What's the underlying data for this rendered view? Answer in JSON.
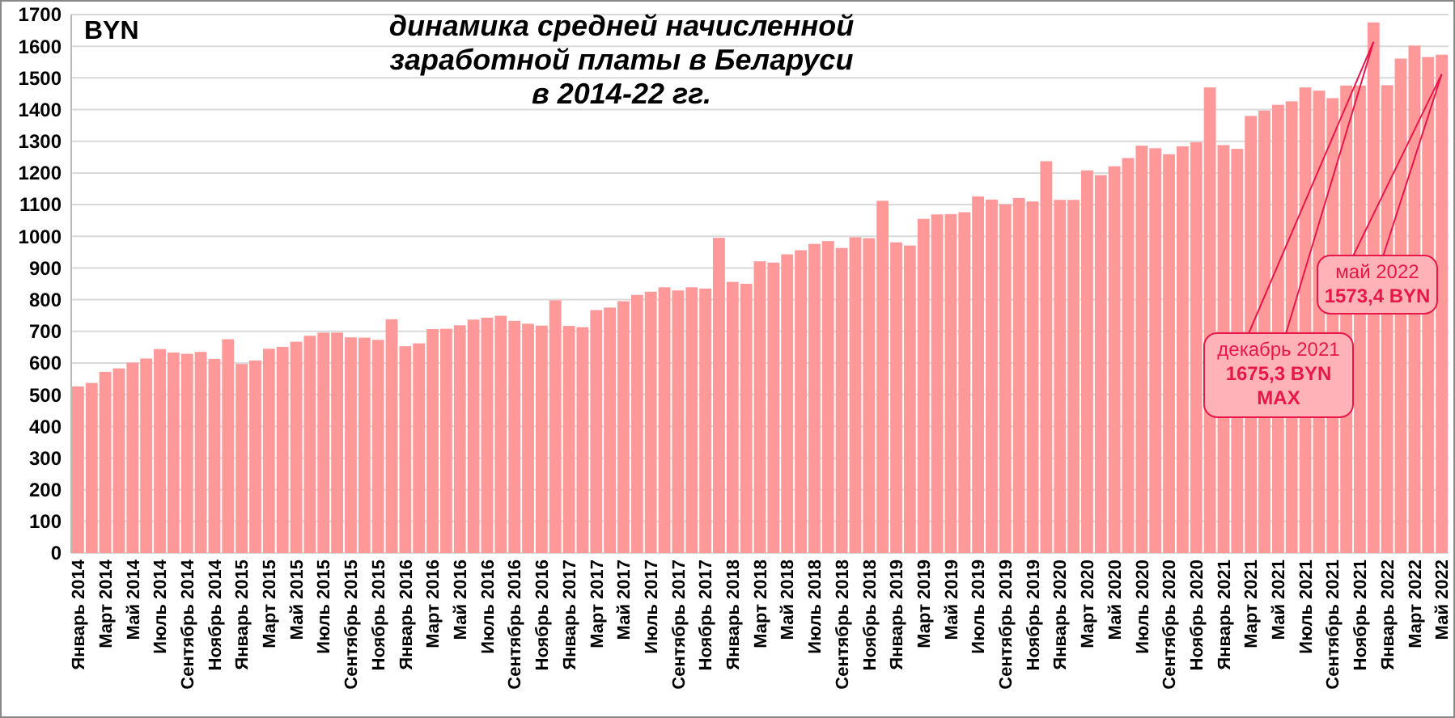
{
  "chart_data": {
    "type": "bar",
    "title": "динамика средней начисленной\nзаработной платы в Беларуси\nв 2014-22 гг.",
    "ylabel": "BYN",
    "categories": [
      "Январь 2014",
      null,
      "Март 2014",
      null,
      "Май 2014",
      null,
      "Июль 2014",
      null,
      "Сентябрь 2014",
      null,
      "Ноябрь 2014",
      null,
      "Январь 2015",
      null,
      "Март 2015",
      null,
      "Май 2015",
      null,
      "Июль 2015",
      null,
      "Сентябрь 2015",
      null,
      "Ноябрь 2015",
      null,
      "Январь 2016",
      null,
      "Март 2016",
      null,
      "Май 2016",
      null,
      "Июль 2016",
      null,
      "Сентябрь 2016",
      null,
      "Ноябрь 2016",
      null,
      "Январь 2017",
      null,
      "Март 2017",
      null,
      "Май 2017",
      null,
      "Июль 2017",
      null,
      "Сентябрь 2017",
      null,
      "Ноябрь 2017",
      null,
      "Январь 2018",
      null,
      "Март 2018",
      null,
      "Май 2018",
      null,
      "Июль 2018",
      null,
      "Сентябрь 2018",
      null,
      "Ноябрь 2018",
      null,
      "Январь 2019",
      null,
      "Март 2019",
      null,
      "Май 2019",
      null,
      "Июль 2019",
      null,
      "Сентябрь 2019",
      null,
      "Ноябрь 2019",
      null,
      "Январь 2020",
      null,
      "Март 2020",
      null,
      "Май 2020",
      null,
      "Июль 2020",
      null,
      "Сентябрь 2020",
      null,
      "Ноябрь 2020",
      null,
      "Январь 2021",
      null,
      "Март 2021",
      null,
      "Май 2021",
      null,
      "Июль 2021",
      null,
      "Сентябрь 2021",
      null,
      "Ноябрь 2021",
      null,
      "Январь 2022",
      null,
      "Март 2022",
      null,
      "Май 2022"
    ],
    "values": [
      526,
      537,
      572,
      583,
      601,
      614,
      644,
      633,
      629,
      635,
      613,
      675,
      597,
      608,
      645,
      651,
      667,
      686,
      696,
      696,
      681,
      680,
      673,
      738,
      653,
      662,
      707,
      708,
      719,
      737,
      743,
      749,
      733,
      724,
      718,
      798,
      717,
      713,
      767,
      775,
      795,
      815,
      825,
      839,
      829,
      839,
      835,
      995,
      856,
      850,
      921,
      917,
      943,
      956,
      976,
      985,
      963,
      997,
      994,
      1112,
      981,
      971,
      1055,
      1069,
      1070,
      1076,
      1126,
      1116,
      1101,
      1121,
      1110,
      1237,
      1115,
      1115,
      1208,
      1193,
      1221,
      1247,
      1286,
      1278,
      1259,
      1284,
      1297,
      1470,
      1288,
      1276,
      1380,
      1397,
      1415,
      1426,
      1470,
      1460,
      1436,
      1476,
      1476,
      1675.3,
      1477,
      1561,
      1602,
      1566,
      1573.4
    ],
    "color": "#ff9999",
    "ylim": [
      0,
      1700
    ],
    "yticks": [
      0,
      100,
      200,
      300,
      400,
      500,
      600,
      700,
      800,
      900,
      1000,
      1100,
      1200,
      1300,
      1400,
      1500,
      1600,
      1700
    ],
    "grid": "y",
    "annotations": [
      "декабрь 2021\n1675,3 BYN\nMAX",
      "май 2022\n1573,4 BYN"
    ]
  }
}
